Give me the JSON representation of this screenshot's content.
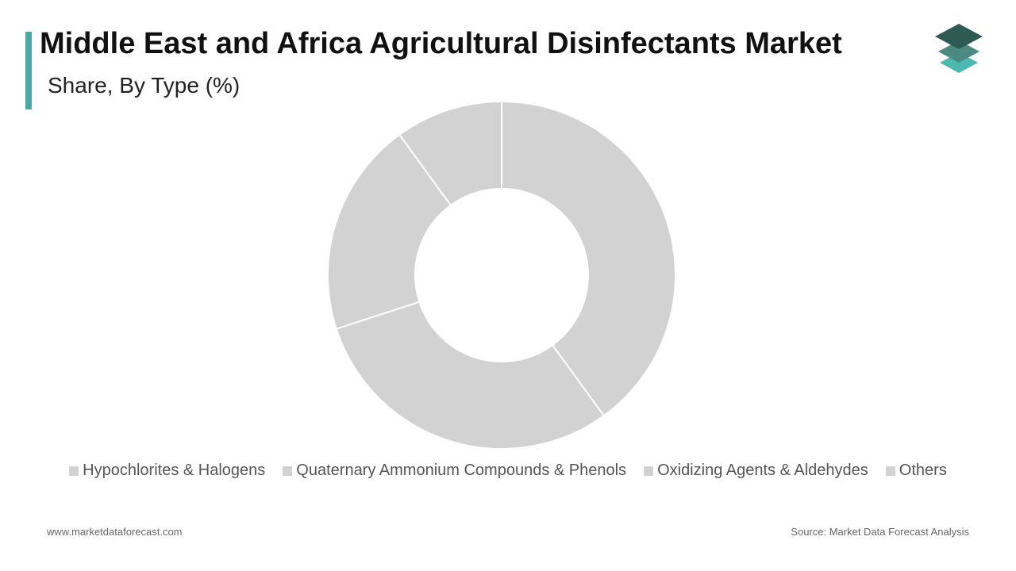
{
  "chart_data": {
    "type": "pie",
    "title": "Middle East and Africa Agricultural Disinfectants Market",
    "subtitle": "Share, By Type (%)",
    "categories": [
      "Hypochlorites & Halogens",
      "Quaternary Ammonium Compounds & Phenols",
      "Oxidizing Agents & Aldehydes",
      "Others"
    ],
    "values": [
      40,
      30,
      20,
      10
    ],
    "color": "#d3d2d2",
    "donut": true
  },
  "footer": {
    "website": "www.marketdataforecast.com",
    "source": "Source: Market Data Forecast Analysis"
  }
}
